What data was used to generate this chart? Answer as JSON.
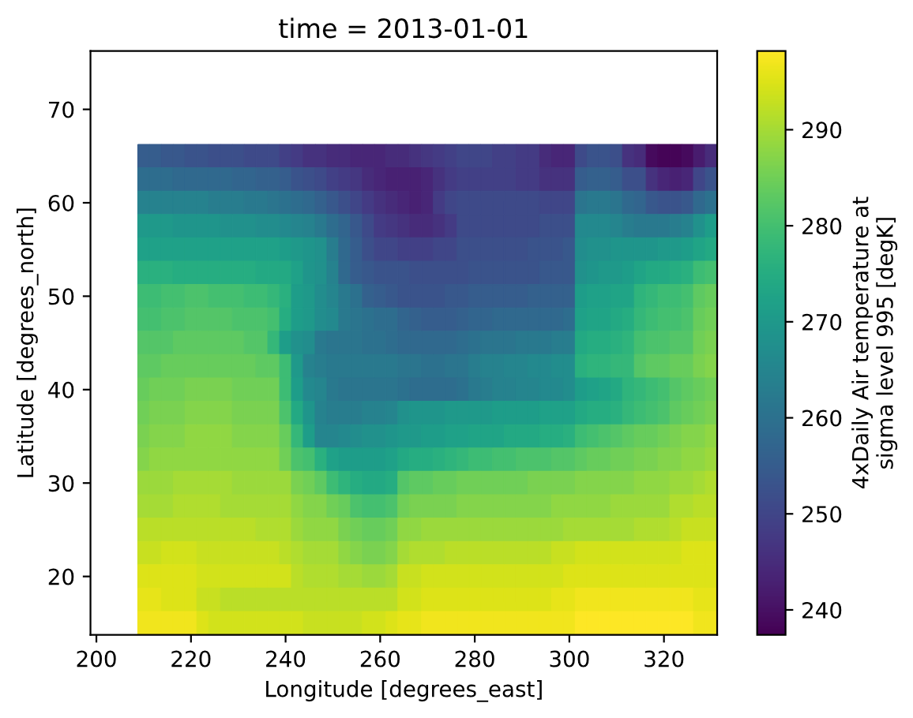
{
  "chart_data": {
    "type": "heatmap",
    "title": "time = 2013-01-01",
    "xlabel": "Longitude [degrees_east]",
    "ylabel": "Latitude [degrees_north]",
    "clabel": "4xDaily Air temperature at sigma level 995 [degK]",
    "xlim": [
      198.75,
      331.25
    ],
    "xticks": [
      200,
      220,
      240,
      260,
      280,
      300,
      320
    ],
    "ylim": [
      13.75,
      76.25
    ],
    "yticks": [
      20,
      30,
      40,
      50,
      60,
      70
    ],
    "clim": [
      237.4,
      298.2
    ],
    "cticks": [
      240,
      250,
      260,
      270,
      280,
      290
    ],
    "x": [
      210,
      212.5,
      215,
      217.5,
      220,
      222.5,
      225,
      227.5,
      230,
      232.5,
      235,
      237.5,
      240,
      242.5,
      245,
      247.5,
      250,
      252.5,
      255,
      257.5,
      260,
      262.5,
      265,
      267.5,
      270,
      272.5,
      275,
      277.5,
      280,
      282.5,
      285,
      287.5,
      290,
      292.5,
      295,
      297.5,
      300,
      302.5,
      305,
      307.5,
      310,
      312.5,
      315,
      317.5,
      320,
      322.5,
      325,
      327.5,
      330
    ],
    "y": [
      65,
      62.5,
      60,
      57.5,
      55,
      52.5,
      50,
      47.5,
      45,
      42.5,
      40,
      37.5,
      35,
      32.5,
      30,
      27.5,
      25,
      22.5,
      20,
      17.5,
      15
    ],
    "cells": [
      [
        255,
        255,
        254,
        254,
        253,
        253,
        252,
        252,
        252,
        251,
        251,
        251,
        249,
        248,
        246,
        246,
        245,
        245,
        244,
        244,
        244,
        245,
        245,
        246,
        247,
        248,
        249,
        250,
        250,
        250,
        249,
        249,
        248,
        248,
        245,
        244,
        244,
        251,
        253,
        253,
        252,
        246,
        245,
        239,
        238,
        238,
        239,
        242,
        245
      ],
      [
        259,
        259,
        259,
        258,
        258,
        258,
        258,
        258,
        257,
        257,
        256,
        256,
        255,
        253,
        252,
        251,
        249,
        248,
        247,
        245,
        244,
        243,
        243,
        243,
        244,
        246,
        248,
        249,
        249,
        249,
        249,
        249,
        248,
        248,
        246,
        246,
        246,
        255,
        256,
        256,
        255,
        252,
        252,
        246,
        244,
        243,
        244,
        250,
        253
      ],
      [
        264,
        264,
        264,
        264,
        264,
        264,
        263,
        263,
        263,
        262,
        262,
        261,
        260,
        259,
        258,
        256,
        254,
        252,
        250,
        248,
        246,
        245,
        244,
        243,
        244,
        248,
        250,
        251,
        251,
        251,
        251,
        251,
        251,
        251,
        250,
        250,
        250,
        261,
        262,
        262,
        261,
        258,
        257,
        254,
        253,
        253,
        254,
        258,
        260
      ],
      [
        270,
        270,
        270,
        269,
        269,
        269,
        269,
        268,
        268,
        268,
        267,
        267,
        266,
        265,
        264,
        262,
        259,
        257,
        254,
        251,
        248,
        247,
        246,
        245,
        245,
        246,
        248,
        251,
        251,
        251,
        251,
        251,
        251,
        251,
        252,
        252,
        252,
        266,
        266,
        266,
        265,
        263,
        262,
        262,
        262,
        263,
        264,
        268,
        271
      ],
      [
        272,
        272,
        272,
        272,
        272,
        272,
        272,
        272,
        272,
        272,
        272,
        272,
        271,
        270,
        269,
        268,
        263,
        258,
        255,
        252,
        250,
        250,
        249,
        249,
        249,
        250,
        250,
        252,
        252,
        252,
        252,
        252,
        252,
        253,
        253,
        253,
        254,
        267,
        268,
        268,
        269,
        269,
        269,
        269,
        270,
        270,
        271,
        273,
        274
      ],
      [
        276,
        276,
        276,
        275,
        275,
        275,
        275,
        275,
        275,
        275,
        274,
        274,
        274,
        272,
        269,
        268,
        264,
        258,
        255,
        254,
        253,
        253,
        253,
        252,
        252,
        252,
        252,
        252,
        253,
        253,
        253,
        253,
        253,
        253,
        254,
        254,
        254,
        268,
        269,
        270,
        270,
        271,
        273,
        274,
        274,
        275,
        276,
        279,
        280
      ],
      [
        279,
        279,
        280,
        280,
        281,
        281,
        280,
        280,
        280,
        279,
        279,
        278,
        276,
        271,
        270,
        267,
        265,
        262,
        260,
        256,
        255,
        254,
        253,
        253,
        253,
        253,
        254,
        254,
        255,
        255,
        255,
        255,
        255,
        256,
        256,
        256,
        256,
        271,
        272,
        272,
        273,
        273,
        277,
        278,
        279,
        279,
        280,
        283,
        284
      ],
      [
        280,
        280,
        281,
        281,
        282,
        282,
        282,
        282,
        281,
        281,
        281,
        280,
        275,
        271,
        270,
        267,
        266,
        262,
        261,
        260,
        259,
        259,
        257,
        256,
        255,
        255,
        255,
        256,
        257,
        257,
        258,
        258,
        258,
        258,
        258,
        258,
        259,
        272,
        273,
        273,
        274,
        275,
        278,
        279,
        280,
        280,
        281,
        284,
        285
      ],
      [
        282,
        282,
        282,
        283,
        283,
        283,
        283,
        283,
        283,
        282,
        282,
        278,
        271,
        268,
        267,
        262,
        261,
        261,
        261,
        260,
        260,
        259,
        258,
        258,
        258,
        258,
        258,
        259,
        260,
        261,
        261,
        261,
        262,
        262,
        262,
        263,
        263,
        274,
        275,
        275,
        276,
        277,
        280,
        281,
        281,
        282,
        282,
        285,
        286
      ],
      [
        283,
        283,
        284,
        284,
        284,
        284,
        284,
        284,
        284,
        284,
        283,
        283,
        279,
        270,
        264,
        263,
        262,
        262,
        262,
        262,
        262,
        262,
        261,
        261,
        260,
        260,
        261,
        261,
        263,
        264,
        264,
        265,
        265,
        266,
        266,
        267,
        267,
        276,
        277,
        277,
        278,
        278,
        282,
        283,
        283,
        284,
        284,
        286,
        287
      ],
      [
        284,
        285,
        285,
        285,
        286,
        286,
        286,
        286,
        285,
        285,
        285,
        285,
        279,
        271,
        266,
        265,
        262,
        261,
        261,
        261,
        261,
        261,
        260,
        259,
        259,
        259,
        259,
        260,
        262,
        263,
        264,
        264,
        265,
        265,
        266,
        266,
        267,
        271,
        272,
        273,
        274,
        277,
        278,
        279,
        280,
        282,
        283,
        284,
        285
      ],
      [
        285,
        286,
        286,
        286,
        287,
        287,
        287,
        287,
        286,
        286,
        286,
        286,
        281,
        274,
        269,
        264,
        263,
        263,
        263,
        264,
        264,
        265,
        268,
        269,
        269,
        269,
        270,
        270,
        270,
        270,
        271,
        271,
        271,
        271,
        272,
        272,
        272,
        274,
        275,
        275,
        276,
        278,
        279,
        280,
        281,
        283,
        284,
        285,
        286
      ],
      [
        286,
        287,
        287,
        287,
        288,
        288,
        288,
        288,
        287,
        287,
        287,
        287,
        284,
        278,
        271,
        265,
        265,
        266,
        267,
        268,
        268,
        269,
        270,
        270,
        271,
        271,
        272,
        272,
        273,
        273,
        273,
        274,
        274,
        274,
        275,
        275,
        276,
        279,
        280,
        281,
        282,
        283,
        284,
        284,
        285,
        286,
        287,
        287,
        288
      ],
      [
        287,
        288,
        288,
        288,
        288,
        288,
        288,
        288,
        288,
        288,
        288,
        288,
        285,
        281,
        280,
        276,
        272,
        271,
        271,
        271,
        271,
        272,
        274,
        275,
        275,
        276,
        277,
        278,
        279,
        279,
        280,
        280,
        281,
        281,
        281,
        282,
        282,
        283,
        284,
        284,
        285,
        285,
        286,
        286,
        287,
        287,
        288,
        288,
        289
      ],
      [
        289,
        289,
        289,
        290,
        290,
        290,
        290,
        290,
        289,
        289,
        289,
        289,
        289,
        286,
        285,
        283,
        279,
        277,
        275,
        274,
        274,
        275,
        282,
        283,
        283,
        284,
        284,
        285,
        285,
        285,
        285,
        285,
        285,
        286,
        286,
        286,
        286,
        287,
        287,
        287,
        287,
        287,
        288,
        288,
        288,
        289,
        289,
        290,
        291
      ],
      [
        290,
        290,
        290,
        291,
        291,
        291,
        291,
        290,
        290,
        290,
        290,
        290,
        290,
        288,
        287,
        287,
        285,
        284,
        281,
        280,
        280,
        281,
        285,
        286,
        286,
        286,
        286,
        287,
        287,
        287,
        287,
        287,
        287,
        287,
        287,
        288,
        288,
        288,
        288,
        288,
        289,
        289,
        289,
        289,
        289,
        291,
        291,
        292,
        292
      ],
      [
        292,
        292,
        292,
        292,
        292,
        292,
        292,
        292,
        292,
        292,
        291,
        291,
        291,
        289,
        288,
        288,
        288,
        286,
        285,
        284,
        284,
        285,
        288,
        288,
        289,
        289,
        289,
        289,
        289,
        289,
        289,
        289,
        289,
        289,
        289,
        289,
        290,
        290,
        290,
        290,
        290,
        290,
        291,
        291,
        291,
        292,
        293,
        293,
        293
      ],
      [
        293,
        293,
        294,
        294,
        294,
        293,
        293,
        293,
        293,
        293,
        293,
        293,
        292,
        291,
        290,
        290,
        290,
        288,
        287,
        286,
        286,
        287,
        290,
        291,
        291,
        291,
        292,
        292,
        292,
        292,
        292,
        292,
        292,
        292,
        292,
        293,
        293,
        294,
        294,
        294,
        294,
        294,
        294,
        294,
        294,
        294,
        295,
        295,
        295
      ],
      [
        295,
        295,
        295,
        295,
        295,
        294,
        294,
        294,
        294,
        294,
        294,
        294,
        294,
        292,
        291,
        291,
        291,
        290,
        290,
        289,
        289,
        290,
        293,
        293,
        294,
        294,
        294,
        294,
        294,
        294,
        294,
        294,
        294,
        294,
        294,
        294,
        295,
        295,
        295,
        295,
        295,
        295,
        295,
        295,
        295,
        295,
        295,
        295,
        295
      ],
      [
        296,
        296,
        295,
        295,
        295,
        293,
        293,
        292,
        292,
        292,
        292,
        292,
        292,
        292,
        292,
        292,
        292,
        292,
        292,
        292,
        292,
        292,
        294,
        294,
        295,
        295,
        295,
        295,
        295,
        295,
        295,
        295,
        295,
        295,
        295,
        296,
        296,
        297,
        297,
        297,
        297,
        297,
        297,
        297,
        297,
        297,
        297,
        296,
        296
      ],
      [
        297,
        297,
        297,
        297,
        297,
        295,
        294,
        294,
        294,
        294,
        294,
        294,
        294,
        294,
        293,
        293,
        293,
        293,
        293,
        294,
        294,
        295,
        296,
        296,
        297,
        297,
        297,
        297,
        297,
        297,
        297,
        297,
        297,
        297,
        297,
        297,
        297,
        298,
        298,
        298,
        298,
        298,
        298,
        298,
        298,
        298,
        298,
        297,
        297
      ]
    ]
  }
}
